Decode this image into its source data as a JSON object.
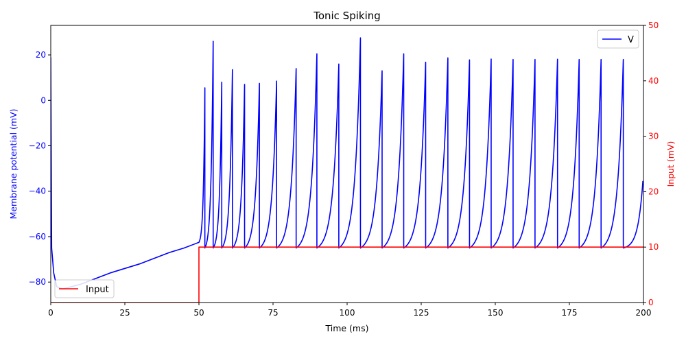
{
  "chart_data": {
    "type": "line",
    "title": "Tonic Spiking",
    "xlabel": "Time (ms)",
    "ylabel_left": "Membrane potential (mV)",
    "ylabel_right": "Input (mV)",
    "xlim": [
      0,
      200
    ],
    "ylim_left": [
      -89,
      33
    ],
    "ylim_right": [
      0,
      50
    ],
    "x_ticks": [
      "0",
      "25",
      "50",
      "75",
      "100",
      "125",
      "150",
      "175",
      "200"
    ],
    "y_ticks_left": [
      "−80",
      "−60",
      "−40",
      "−20",
      "0",
      "20"
    ],
    "y_ticks_right": [
      "0",
      "10",
      "20",
      "30",
      "40",
      "50"
    ],
    "grid": false,
    "legend_v": {
      "label": "V",
      "placement": "top-right",
      "color": "#0000ff"
    },
    "legend_input": {
      "label": "Input",
      "placement": "bottom-left",
      "color": "#ff0000"
    },
    "colors": {
      "left_axis": "#0000ff",
      "right_axis": "#ff0000"
    },
    "series": [
      {
        "name": "V",
        "axis": "left",
        "color": "#0000ff",
        "x": [
          0,
          0.3,
          1,
          2,
          4,
          10,
          20,
          30,
          40,
          45,
          48,
          50,
          52.0,
          54.8,
          57.7,
          61.3,
          65.4,
          70.4,
          76.2,
          82.8,
          89.8,
          97.2,
          104.5,
          111.8,
          119.1,
          126.5,
          134.0,
          141.3,
          148.6,
          156.0,
          163.4,
          171.0,
          178.3,
          185.7,
          193.2,
          199.8
        ],
        "y": [
          19,
          -65,
          -76,
          -82,
          -83,
          -81,
          -76,
          -72,
          -67,
          -65,
          -63.5,
          -62.5,
          5.5,
          26,
          8,
          13.5,
          7,
          7.5,
          8.5,
          14,
          20.5,
          16,
          27.5,
          13,
          20.5,
          16.8,
          18.7,
          17.8,
          18.2,
          18,
          18,
          18.1,
          18,
          18,
          18,
          -35.5
        ],
        "reset_potential": -65
      },
      {
        "name": "Input",
        "axis": "right",
        "color": "#ff0000",
        "x": [
          0,
          50,
          50,
          200
        ],
        "y": [
          0,
          0,
          10,
          10
        ]
      }
    ]
  }
}
